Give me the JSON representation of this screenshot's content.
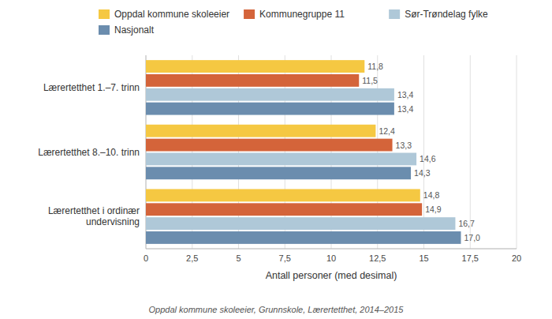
{
  "chart_data": {
    "type": "bar",
    "orientation": "horizontal",
    "categories": [
      "Lærertetthet 1.–7. trinn",
      "Lærertetthet 8.–10. trinn",
      "Lærertetthet i ordinær\nundervisning"
    ],
    "series": [
      {
        "name": "Oppdal kommune skoleeier",
        "color": "#F5C842",
        "values": [
          11.8,
          12.4,
          14.8
        ],
        "value_labels": [
          "11,8",
          "12,4",
          "14,8"
        ]
      },
      {
        "name": "Kommunegruppe 11",
        "color": "#D4643A",
        "values": [
          11.5,
          13.3,
          14.9
        ],
        "value_labels": [
          "11,5",
          "13,3",
          "14,9"
        ]
      },
      {
        "name": "Sør-Trøndelag fylke",
        "color": "#AFC8D8",
        "values": [
          13.4,
          14.6,
          16.7
        ],
        "value_labels": [
          "13,4",
          "14,6",
          "16,7"
        ]
      },
      {
        "name": "Nasjonalt",
        "color": "#6B8DAE",
        "values": [
          13.4,
          14.3,
          17.0
        ],
        "value_labels": [
          "13,4",
          "14,3",
          "17,0"
        ]
      }
    ],
    "xlabel": "Antall personer (med desimal)",
    "xlim": [
      0,
      20
    ],
    "xticks": [
      0,
      {
        "value": 2.5,
        "label": "2,5"
      },
      5,
      {
        "value": 7.5,
        "label": "7,5"
      },
      10,
      {
        "value": 12.5,
        "label": "12,5"
      },
      15,
      {
        "value": 17.5,
        "label": "17,5"
      },
      20
    ],
    "footnote": "Oppdal kommune skoleeier, Grunnskole, Lærertetthet, 2014–2015",
    "grid": true,
    "legend": "upper-left",
    "data_labels": true
  }
}
